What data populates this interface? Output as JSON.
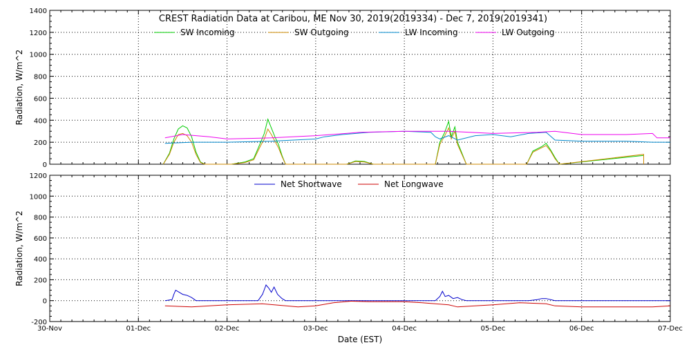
{
  "chart_data": [
    {
      "type": "line",
      "title": "CREST Radiation Data at Caribou, ME   Nov 30, 2019(2019334) - Dec  7, 2019(2019341)",
      "xlabel": "",
      "ylabel": "Radiation, W/m^2",
      "x_unit": "days since 30-Nov 00:00 EST",
      "xlim": [
        0,
        7
      ],
      "ylim": [
        0,
        1400
      ],
      "yticks": [
        0,
        200,
        400,
        600,
        800,
        1000,
        1200,
        1400
      ],
      "grid": true,
      "legend": "top",
      "series": [
        {
          "name": "SW Incoming",
          "color": "#00cc00",
          "x": [
            1.28,
            1.35,
            1.4,
            1.45,
            1.5,
            1.55,
            1.6,
            1.65,
            1.7,
            1.75,
            2.05,
            2.2,
            2.3,
            2.38,
            2.42,
            2.46,
            2.5,
            2.54,
            2.58,
            2.62,
            2.66,
            3.35,
            3.45,
            3.55,
            3.65,
            4.35,
            4.4,
            4.45,
            4.5,
            4.53,
            4.57,
            4.6,
            4.65,
            4.7,
            5.38,
            5.45,
            5.55,
            5.6,
            5.65,
            5.7,
            5.75,
            6.7,
            6.7
          ],
          "y": [
            0,
            100,
            230,
            320,
            350,
            330,
            250,
            110,
            20,
            0,
            0,
            20,
            50,
            200,
            280,
            410,
            330,
            250,
            180,
            80,
            0,
            0,
            30,
            25,
            0,
            0,
            200,
            280,
            390,
            250,
            340,
            200,
            100,
            0,
            0,
            120,
            160,
            190,
            130,
            60,
            0,
            80,
            0
          ]
        },
        {
          "name": "SW Outgoing",
          "color": "#cc8800",
          "x": [
            1.28,
            1.35,
            1.4,
            1.45,
            1.5,
            1.55,
            1.6,
            1.65,
            1.7,
            1.75,
            2.05,
            2.2,
            2.3,
            2.38,
            2.42,
            2.46,
            2.5,
            2.54,
            2.58,
            2.62,
            2.66,
            3.35,
            3.45,
            3.55,
            3.65,
            4.35,
            4.4,
            4.45,
            4.5,
            4.53,
            4.57,
            4.6,
            4.65,
            4.7,
            5.38,
            5.45,
            5.55,
            5.6,
            5.65,
            5.7,
            5.75,
            6.7,
            6.7
          ],
          "y": [
            0,
            90,
            200,
            270,
            280,
            260,
            200,
            90,
            15,
            0,
            0,
            15,
            40,
            170,
            230,
            320,
            270,
            210,
            150,
            70,
            0,
            0,
            25,
            20,
            0,
            0,
            180,
            250,
            330,
            230,
            300,
            180,
            90,
            0,
            0,
            110,
            150,
            170,
            120,
            50,
            0,
            90,
            0
          ]
        },
        {
          "name": "LW Incoming",
          "color": "#0088cc",
          "x": [
            1.3,
            1.6,
            2.0,
            2.5,
            3.0,
            3.1,
            3.3,
            3.6,
            4.0,
            4.3,
            4.35,
            4.4,
            4.5,
            4.6,
            4.8,
            5.0,
            5.2,
            5.4,
            5.6,
            5.7,
            6.0,
            6.5,
            6.8,
            7.0
          ],
          "y": [
            190,
            200,
            200,
            210,
            230,
            250,
            270,
            290,
            300,
            290,
            250,
            230,
            260,
            220,
            260,
            270,
            250,
            280,
            290,
            220,
            210,
            210,
            200,
            200
          ]
        },
        {
          "name": "LW Outgoing",
          "color": "#ee00ee",
          "x": [
            1.3,
            1.5,
            1.8,
            2.0,
            2.5,
            3.0,
            3.5,
            4.0,
            4.5,
            5.0,
            5.5,
            5.7,
            6.0,
            6.5,
            6.8,
            6.85,
            7.0
          ],
          "y": [
            240,
            270,
            250,
            230,
            240,
            260,
            290,
            300,
            300,
            280,
            290,
            300,
            270,
            270,
            280,
            240,
            240
          ]
        }
      ]
    },
    {
      "type": "line",
      "title": "",
      "xlabel": "Date (EST)",
      "ylabel": "Radiation, W/m^2",
      "x_unit": "days since 30-Nov 00:00 EST",
      "xlim": [
        0,
        7
      ],
      "ylim": [
        -200,
        1200
      ],
      "yticks": [
        -200,
        0,
        200,
        400,
        600,
        800,
        1000,
        1200
      ],
      "xtick_labels": [
        "30-Nov",
        "01-Dec",
        "02-Dec",
        "03-Dec",
        "04-Dec",
        "05-Dec",
        "06-Dec",
        "07-Dec"
      ],
      "grid": true,
      "legend": "top",
      "series": [
        {
          "name": "Net Shortwave",
          "color": "#0000cc",
          "x": [
            1.3,
            1.38,
            1.4,
            1.42,
            1.46,
            1.5,
            1.55,
            1.6,
            1.65,
            2.35,
            2.4,
            2.44,
            2.47,
            2.5,
            2.53,
            2.57,
            2.62,
            2.66,
            4.35,
            4.4,
            4.43,
            4.46,
            4.5,
            4.55,
            4.6,
            4.65,
            4.7,
            5.4,
            5.5,
            5.55,
            5.6,
            5.7,
            7.0
          ],
          "y": [
            0,
            10,
            60,
            100,
            80,
            60,
            50,
            30,
            0,
            0,
            60,
            150,
            120,
            80,
            130,
            60,
            20,
            0,
            0,
            40,
            90,
            40,
            50,
            20,
            30,
            10,
            0,
            0,
            10,
            20,
            20,
            0,
            0
          ]
        },
        {
          "name": "Net Longwave",
          "color": "#cc0000",
          "x": [
            1.3,
            1.6,
            2.0,
            2.4,
            2.8,
            3.0,
            3.2,
            3.4,
            3.6,
            3.8,
            4.0,
            4.2,
            4.5,
            4.6,
            5.0,
            5.3,
            5.6,
            5.7,
            6.0,
            6.5,
            6.8,
            7.0
          ],
          "y": [
            -50,
            -60,
            -40,
            -30,
            -60,
            -50,
            -20,
            -5,
            -10,
            -10,
            -10,
            -20,
            -40,
            -60,
            -40,
            -20,
            -30,
            -50,
            -60,
            -60,
            -60,
            -50
          ]
        }
      ]
    }
  ]
}
